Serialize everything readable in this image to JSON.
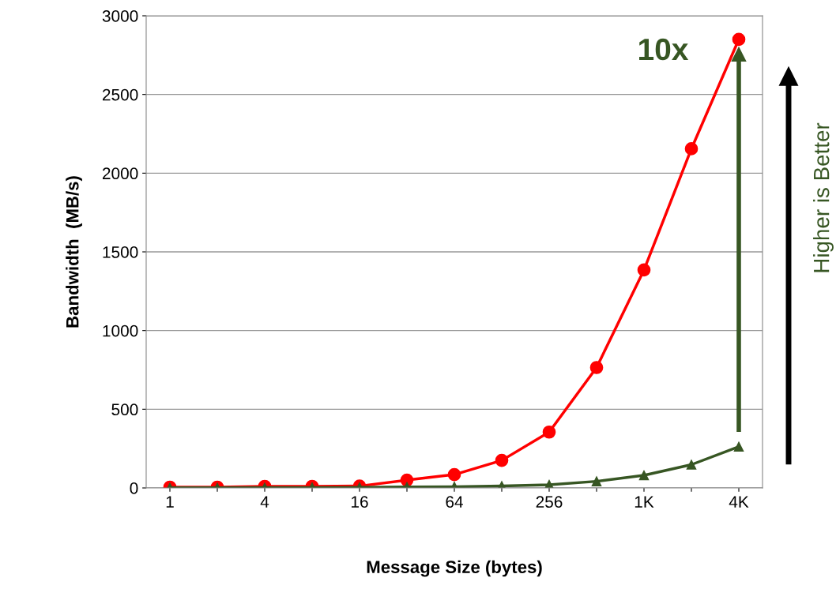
{
  "chart_data": {
    "type": "line",
    "xlabel": "Message Size (bytes)",
    "ylabel": "Bandwidth  (MB/s)",
    "categories": [
      "1",
      null,
      "4",
      null,
      "16",
      null,
      "64",
      null,
      "256",
      null,
      "1K",
      null,
      "4K"
    ],
    "series": [
      {
        "color": "#ff0000",
        "marker": "circle",
        "values": [
          5,
          5,
          10,
          10,
          12,
          50,
          85,
          175,
          355,
          765,
          1385,
          2155,
          2850
        ]
      },
      {
        "color": "#375623",
        "marker": "triangle",
        "values": [
          1,
          1,
          2,
          3,
          4,
          6,
          8,
          12,
          20,
          42,
          80,
          148,
          262
        ]
      }
    ],
    "ylim": [
      0,
      3000
    ],
    "yticks": [
      0,
      500,
      1000,
      1500,
      2000,
      2500,
      3000
    ],
    "grid": "y",
    "legend": false,
    "annotations": [
      "10x",
      "Higher is Better"
    ]
  }
}
